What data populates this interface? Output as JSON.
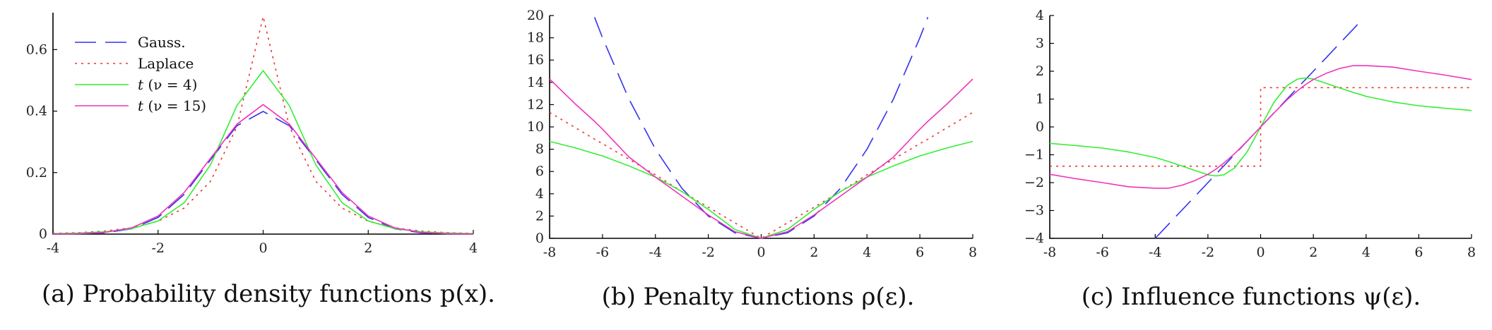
{
  "chart_data": [
    {
      "type": "line",
      "panel": "a",
      "caption": "(a) Probability density functions p(x).",
      "xlim": [
        -4,
        4
      ],
      "ylim": [
        0,
        0.72
      ],
      "xticks": [
        -4,
        -2,
        0,
        2,
        4
      ],
      "xtick_labels": [
        "-4",
        "-2",
        "0",
        "2",
        "4"
      ],
      "yticks": [
        0,
        0.2,
        0.4,
        0.6
      ],
      "ytick_labels": [
        "0",
        "0.2",
        "0.4",
        "0.6"
      ],
      "legend_placement": "top-left",
      "x": [
        -4,
        -3.5,
        -3,
        -2.5,
        -2,
        -1.5,
        -1,
        -0.5,
        0,
        0.5,
        1,
        1.5,
        2,
        2.5,
        3,
        3.5,
        4
      ],
      "series": [
        {
          "name": "Gauss.",
          "label_main": "Gauss.",
          "label_rest": "",
          "values": [
            0.0001,
            0.0009,
            0.0044,
            0.0175,
            0.054,
            0.1295,
            0.242,
            0.3521,
            0.399,
            0.3521,
            0.242,
            0.1295,
            0.054,
            0.0175,
            0.0044,
            0.0009,
            0.0001
          ]
        },
        {
          "name": "Laplace",
          "label_main": "Laplace",
          "label_rest": "",
          "values": [
            0.0025,
            0.0049,
            0.0101,
            0.0206,
            0.042,
            0.0848,
            0.1721,
            0.3487,
            0.7071,
            0.3487,
            0.1721,
            0.0848,
            0.042,
            0.0206,
            0.0101,
            0.0049,
            0.0025
          ]
        },
        {
          "name": "t (ν = 4)",
          "label_main": "t",
          "label_rest": "(ν = 4)",
          "values": [
            0.0017,
            0.0034,
            0.0076,
            0.0179,
            0.0429,
            0.1024,
            0.2256,
            0.4178,
            0.5317,
            0.4178,
            0.2256,
            0.1024,
            0.0429,
            0.0179,
            0.0076,
            0.0034,
            0.0017
          ]
        },
        {
          "name": "t (ν = 15)",
          "label_main": "t",
          "label_rest": "(ν = 15)",
          "values": [
            0.0003,
            0.0014,
            0.0058,
            0.0206,
            0.0587,
            0.1357,
            0.2467,
            0.3572,
            0.4212,
            0.3572,
            0.2467,
            0.1357,
            0.0587,
            0.0206,
            0.0058,
            0.0014,
            0.0003
          ]
        }
      ]
    },
    {
      "type": "line",
      "panel": "b",
      "caption": "(b) Penalty functions ρ(ε).",
      "xlim": [
        -8,
        8
      ],
      "ylim": [
        0,
        20
      ],
      "xticks": [
        -8,
        -6,
        -4,
        -2,
        0,
        2,
        4,
        6,
        8
      ],
      "xtick_labels": [
        "-8",
        "-6",
        "-4",
        "-2",
        "0",
        "2",
        "4",
        "6",
        "8"
      ],
      "yticks": [
        0,
        2,
        4,
        6,
        8,
        10,
        12,
        14,
        16,
        18,
        20
      ],
      "ytick_labels": [
        "0",
        "2",
        "4",
        "6",
        "8",
        "10",
        "12",
        "14",
        "16",
        "18",
        "20"
      ],
      "x": [
        -8,
        -7,
        -6.3,
        -6,
        -5,
        -4,
        -3,
        -2,
        -1,
        0,
        1,
        2,
        3,
        4,
        5,
        6,
        6.3,
        7,
        8
      ],
      "series": [
        {
          "name": "Gauss.",
          "values": [
            null,
            null,
            19.85,
            18.0,
            12.5,
            8.0,
            4.5,
            2.0,
            0.5,
            0,
            0.5,
            2.0,
            4.5,
            8.0,
            12.5,
            18.0,
            19.85,
            null,
            null
          ]
        },
        {
          "name": "Laplace",
          "values": [
            11.3,
            9.9,
            8.9,
            8.5,
            7.1,
            5.7,
            4.2,
            2.8,
            1.4,
            0,
            1.4,
            2.8,
            4.2,
            5.7,
            7.1,
            8.5,
            8.9,
            9.9,
            11.3
          ]
        },
        {
          "name": "t (ν = 4)",
          "values": [
            8.7,
            8.1,
            7.6,
            7.4,
            6.5,
            5.5,
            4.2,
            2.6,
            0.8,
            0,
            0.8,
            2.6,
            4.2,
            5.5,
            6.5,
            7.4,
            7.6,
            8.1,
            8.7
          ]
        },
        {
          "name": "t (ν = 15)",
          "values": [
            14.3,
            12.0,
            10.5,
            9.8,
            7.3,
            5.5,
            3.8,
            2.1,
            0.6,
            0,
            0.6,
            2.1,
            3.8,
            5.5,
            7.3,
            9.8,
            10.5,
            12.0,
            14.3
          ]
        }
      ]
    },
    {
      "type": "line",
      "panel": "c",
      "caption": "(c) Influence functions ψ(ε).",
      "xlim": [
        -8,
        8
      ],
      "ylim": [
        -4,
        4
      ],
      "xticks": [
        -8,
        -6,
        -4,
        -2,
        0,
        2,
        4,
        6,
        8
      ],
      "xtick_labels": [
        "-8",
        "-6",
        "-4",
        "-2",
        "0",
        "2",
        "4",
        "6",
        "8"
      ],
      "yticks": [
        -4,
        -3,
        -2,
        -1,
        0,
        1,
        2,
        3,
        4
      ],
      "ytick_labels": [
        "−4",
        "−3",
        "−2",
        "−1",
        "0",
        "1",
        "2",
        "3",
        "4"
      ],
      "x": [
        -8,
        -7,
        -6,
        -5,
        -4,
        -3.5,
        -3,
        -2.5,
        -2,
        -1.7,
        -1.4,
        -1,
        -0.5,
        -0.001,
        0.001,
        0.5,
        1,
        1.4,
        1.7,
        2,
        2.5,
        3,
        3.5,
        3.8,
        4,
        5,
        6,
        7,
        8
      ],
      "series": [
        {
          "name": "Gauss.",
          "values": [
            null,
            null,
            null,
            null,
            -4,
            -3.5,
            -3,
            -2.5,
            -2,
            -1.7,
            -1.4,
            -1,
            -0.5,
            0,
            0,
            0.5,
            1,
            1.4,
            1.7,
            2,
            2.5,
            3,
            3.5,
            3.8,
            null,
            null,
            null,
            null,
            null
          ]
        },
        {
          "name": "Laplace",
          "values": [
            -1.41,
            -1.41,
            -1.41,
            -1.41,
            -1.41,
            -1.41,
            -1.41,
            -1.41,
            -1.41,
            -1.41,
            -1.41,
            -1.41,
            -1.41,
            -1.41,
            1.41,
            1.41,
            1.41,
            1.41,
            1.41,
            1.41,
            1.41,
            1.41,
            1.41,
            1.41,
            1.41,
            1.41,
            1.41,
            1.41,
            1.41
          ]
        },
        {
          "name": "t (ν = 4)",
          "values": [
            -0.59,
            -0.67,
            -0.76,
            -0.9,
            -1.1,
            -1.24,
            -1.4,
            -1.56,
            -1.72,
            -1.76,
            -1.72,
            -1.48,
            -0.88,
            0,
            0,
            0.88,
            1.48,
            1.72,
            1.76,
            1.72,
            1.56,
            1.4,
            1.24,
            1.16,
            1.1,
            0.9,
            0.76,
            0.67,
            0.59
          ]
        },
        {
          "name": "t (ν = 15)",
          "values": [
            -1.7,
            -1.86,
            -2.0,
            -2.15,
            -2.2,
            -2.2,
            -2.1,
            -1.93,
            -1.7,
            -1.52,
            -1.3,
            -0.97,
            -0.5,
            0,
            0,
            0.5,
            0.97,
            1.3,
            1.52,
            1.7,
            1.93,
            2.1,
            2.2,
            2.2,
            2.2,
            2.15,
            2.0,
            1.86,
            1.7
          ]
        }
      ]
    }
  ],
  "series_colors": [
    "#3333ee",
    "#ee3333",
    "#33ee33",
    "#ee33bb"
  ],
  "series_dash": [
    "30 13",
    "3 6",
    "",
    ""
  ]
}
